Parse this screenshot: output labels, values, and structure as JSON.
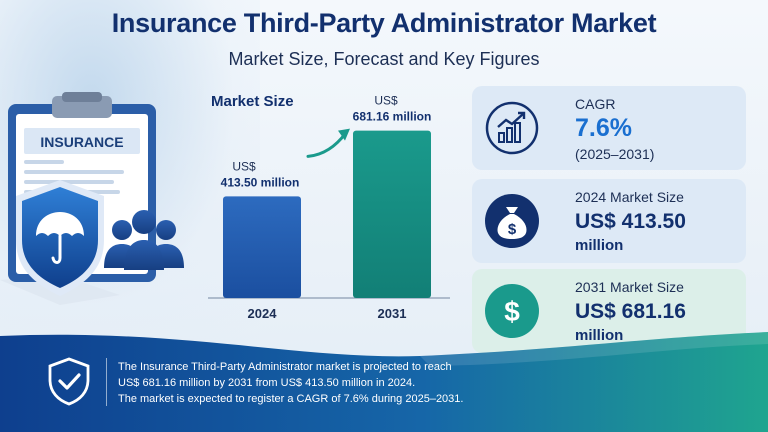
{
  "title": "Insurance Third-Party Administrator Market",
  "subtitle": "Market Size, Forecast and Key Figures",
  "illustration": {
    "clipboard_label": "INSURANCE"
  },
  "chart_data": {
    "type": "bar",
    "title": "Market Size",
    "categories": [
      "2024",
      "2031"
    ],
    "values": [
      413.5,
      681.16
    ],
    "value_labels": [
      {
        "currency": "US$",
        "amount": "413.50 million"
      },
      {
        "currency": "US$",
        "amount": "681.16 million"
      }
    ],
    "xlabel": "",
    "ylabel": "",
    "ylim": [
      0,
      700
    ],
    "grid": false,
    "colors": [
      "#2d6bbf",
      "#1a9a8c"
    ]
  },
  "cards": [
    {
      "icon": "growth-chart-icon",
      "label": "CAGR",
      "value": "7.6%",
      "period": "(2025–2031)"
    },
    {
      "icon": "money-bag-icon",
      "label": "2024 Market Size",
      "value": "US$ 413.50",
      "unit": "million"
    },
    {
      "icon": "dollar-coin-icon",
      "label": "2031 Market Size",
      "value": "US$ 681.16",
      "unit": "million"
    }
  ],
  "footer": {
    "icon": "shield-check-icon",
    "lines": [
      "The Insurance Third-Party Administrator market is projected to reach",
      "US$ 681.16 million by 2031 from US$ 413.50 million in 2024.",
      "The market is expected to register a CAGR of 7.6% during 2025–2031."
    ]
  },
  "colors": {
    "navy": "#12306e",
    "blue": "#2d6bbf",
    "teal": "#1a9a8c"
  }
}
